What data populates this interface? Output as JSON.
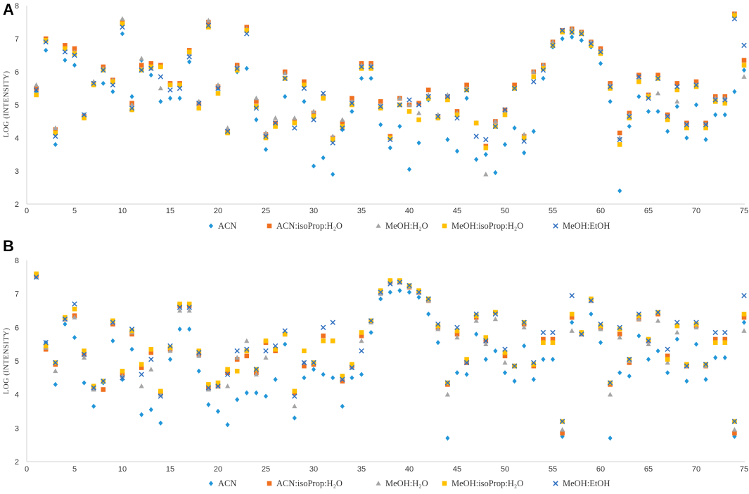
{
  "figure": {
    "legend": [
      {
        "name": "ACN",
        "marker": "diamond",
        "color": "#2196d8"
      },
      {
        "name": "ACN:isoProp:H₂O",
        "marker": "square",
        "color": "#f07020"
      },
      {
        "name": "MeOH:H₂O",
        "marker": "triangle",
        "color": "#a5a5a5"
      },
      {
        "name": "MeOH:isoProp:H₂O",
        "marker": "square",
        "color": "#ffc000"
      },
      {
        "name": "MeOH:EtOH",
        "marker": "cross",
        "color": "#2f6fbf"
      }
    ]
  },
  "chart_data": [
    {
      "type": "scatter",
      "panel_label": "A",
      "ylabel": "LOG (INTENSITY)",
      "xlabel": "",
      "xlim": [
        0,
        75
      ],
      "ylim": [
        2,
        8
      ],
      "xticks": [
        0,
        5,
        10,
        15,
        20,
        25,
        30,
        35,
        40,
        45,
        50,
        55,
        60,
        65,
        70,
        75
      ],
      "yticks": [
        2,
        3,
        4,
        5,
        6,
        7,
        8
      ],
      "grid": false,
      "legend_position": "bottom",
      "x": [
        1,
        2,
        3,
        4,
        5,
        6,
        7,
        8,
        9,
        10,
        11,
        12,
        13,
        14,
        15,
        16,
        17,
        18,
        19,
        20,
        21,
        22,
        23,
        24,
        25,
        26,
        27,
        28,
        29,
        30,
        31,
        32,
        33,
        34,
        35,
        36,
        37,
        38,
        39,
        40,
        41,
        42,
        43,
        44,
        45,
        46,
        47,
        48,
        49,
        50,
        51,
        52,
        53,
        54,
        55,
        56,
        57,
        58,
        59,
        60,
        61,
        62,
        63,
        64,
        65,
        66,
        67,
        68,
        69,
        70,
        71,
        72,
        73,
        74,
        75
      ],
      "series": [
        {
          "name": "ACN",
          "values": [
            5.4,
            6.65,
            3.8,
            6.35,
            6.2,
            4.7,
            5.6,
            5.65,
            5.4,
            7.15,
            5.25,
            6.35,
            5.9,
            5.1,
            5.2,
            5.2,
            6.3,
            5.05,
            7.5,
            5.5,
            4.25,
            6.0,
            6.1,
            4.55,
            3.65,
            4.4,
            5.25,
            4.5,
            5.1,
            3.15,
            3.4,
            2.9,
            4.25,
            4.8,
            5.8,
            5.8,
            4.4,
            3.7,
            4.35,
            3.05,
            3.85,
            5.15,
            4.6,
            3.95,
            3.6,
            5.2,
            3.35,
            3.5,
            2.95,
            3.8,
            4.3,
            3.55,
            4.2,
            5.8,
            6.75,
            7.0,
            7.05,
            6.95,
            6.75,
            6.25,
            5.1,
            2.4,
            4.35,
            5.25,
            4.8,
            4.8,
            4.2,
            4.95,
            4.0,
            5.0,
            3.95,
            4.7,
            4.7,
            5.4,
            6.05
          ]
        },
        {
          "name": "ACN:isoProp:H₂O",
          "values": [
            5.5,
            7.0,
            4.25,
            6.8,
            6.7,
            4.65,
            5.65,
            6.15,
            5.75,
            7.5,
            5.05,
            6.2,
            6.25,
            6.2,
            5.65,
            5.65,
            6.65,
            5.05,
            7.5,
            5.55,
            4.2,
            6.2,
            7.35,
            5.1,
            4.1,
            4.45,
            6.0,
            4.5,
            5.7,
            4.75,
            5.25,
            4.0,
            4.45,
            5.2,
            6.25,
            6.25,
            5.1,
            4.05,
            5.2,
            5.0,
            5.05,
            5.45,
            4.65,
            5.25,
            4.8,
            5.6,
            4.45,
            3.75,
            4.5,
            4.85,
            5.6,
            4.05,
            6.0,
            6.2,
            6.9,
            7.25,
            7.3,
            7.2,
            6.9,
            6.7,
            5.65,
            4.15,
            4.75,
            5.9,
            5.3,
            5.9,
            4.7,
            5.65,
            4.45,
            5.7,
            4.45,
            5.25,
            5.25,
            7.75,
            6.35
          ]
        },
        {
          "name": "MeOH:H₂O",
          "values": [
            5.6,
            6.95,
            4.3,
            6.7,
            6.6,
            4.7,
            5.7,
            6.1,
            5.75,
            7.6,
            5.0,
            6.4,
            6.1,
            5.5,
            5.6,
            5.6,
            6.55,
            5.1,
            7.55,
            5.6,
            4.3,
            6.15,
            7.3,
            5.2,
            4.15,
            4.6,
            5.95,
            4.6,
            5.6,
            4.8,
            5.3,
            4.05,
            4.55,
            5.1,
            6.2,
            6.2,
            5.0,
            4.0,
            5.2,
            5.0,
            4.75,
            5.3,
            4.7,
            5.3,
            4.75,
            5.5,
            4.45,
            2.9,
            4.5,
            4.8,
            5.5,
            4.1,
            6.0,
            6.2,
            6.9,
            7.25,
            7.3,
            7.2,
            6.9,
            6.65,
            5.6,
            4.0,
            4.7,
            5.8,
            5.3,
            5.35,
            4.65,
            5.1,
            4.4,
            5.6,
            4.4,
            5.2,
            5.2,
            7.75,
            5.85
          ]
        },
        {
          "name": "MeOH:isoProp:H₂O",
          "values": [
            5.3,
            6.95,
            4.15,
            6.7,
            6.55,
            4.6,
            5.6,
            6.05,
            5.7,
            7.45,
            4.85,
            6.05,
            6.15,
            6.15,
            5.6,
            5.6,
            6.6,
            4.9,
            7.35,
            5.35,
            4.15,
            6.05,
            7.25,
            4.95,
            4.0,
            4.35,
            5.8,
            4.45,
            5.6,
            4.65,
            5.2,
            3.95,
            4.35,
            5.0,
            6.1,
            6.1,
            4.9,
            4.0,
            5.0,
            4.8,
            4.55,
            5.2,
            4.6,
            5.15,
            4.7,
            5.45,
            4.45,
            3.7,
            4.35,
            4.7,
            5.5,
            4.0,
            5.85,
            6.1,
            6.8,
            7.2,
            7.2,
            7.15,
            6.8,
            6.55,
            5.5,
            3.8,
            4.6,
            5.7,
            5.25,
            5.8,
            4.55,
            5.45,
            4.3,
            5.55,
            4.3,
            5.1,
            5.05,
            7.7,
            6.2
          ]
        },
        {
          "name": "MeOH:EtOH",
          "values": [
            5.45,
            6.9,
            4.05,
            6.6,
            6.5,
            4.7,
            5.65,
            6.05,
            5.6,
            7.35,
            4.9,
            6.05,
            6.1,
            5.85,
            5.45,
            5.5,
            6.45,
            5.05,
            7.4,
            5.5,
            4.2,
            6.1,
            7.15,
            4.9,
            4.05,
            4.45,
            5.8,
            4.3,
            5.5,
            4.55,
            5.35,
            3.85,
            4.3,
            5.05,
            6.15,
            6.15,
            4.95,
            3.95,
            5.0,
            5.15,
            5.0,
            5.25,
            4.65,
            5.25,
            4.6,
            5.45,
            4.05,
            3.95,
            4.35,
            4.85,
            5.5,
            3.9,
            5.7,
            6.05,
            6.8,
            7.25,
            7.2,
            7.15,
            6.85,
            6.6,
            5.55,
            3.95,
            4.65,
            5.85,
            5.2,
            5.8,
            4.65,
            5.55,
            4.4,
            5.6,
            4.4,
            5.15,
            5.15,
            7.6,
            6.8
          ]
        }
      ]
    },
    {
      "type": "scatter",
      "panel_label": "B",
      "ylabel": "LOG (INTENSITY)",
      "xlabel": "",
      "xlim": [
        0,
        75
      ],
      "ylim": [
        2,
        8
      ],
      "xticks": [
        0,
        5,
        10,
        15,
        20,
        25,
        30,
        35,
        40,
        45,
        50,
        55,
        60,
        65,
        70,
        75
      ],
      "yticks": [
        2,
        3,
        4,
        5,
        6,
        7,
        8
      ],
      "grid": false,
      "legend_position": "bottom",
      "x": [
        1,
        2,
        3,
        4,
        5,
        6,
        7,
        8,
        9,
        10,
        11,
        12,
        13,
        14,
        15,
        16,
        17,
        18,
        19,
        20,
        21,
        22,
        23,
        24,
        25,
        26,
        27,
        28,
        29,
        30,
        31,
        32,
        33,
        34,
        35,
        36,
        37,
        38,
        39,
        40,
        41,
        42,
        43,
        44,
        45,
        46,
        47,
        48,
        49,
        50,
        51,
        52,
        53,
        54,
        55,
        56,
        57,
        58,
        59,
        60,
        61,
        62,
        63,
        64,
        65,
        66,
        67,
        68,
        69,
        70,
        71,
        72,
        73,
        74,
        75
      ],
      "series": [
        {
          "name": "ACN",
          "values": [
            7.5,
            5.55,
            4.3,
            6.1,
            5.7,
            4.35,
            3.65,
            4.35,
            5.6,
            4.45,
            5.35,
            3.4,
            3.55,
            3.15,
            5.05,
            5.95,
            5.95,
            4.7,
            3.7,
            3.5,
            3.1,
            3.85,
            4.05,
            4.05,
            3.95,
            4.45,
            5.5,
            3.3,
            4.5,
            4.75,
            4.6,
            4.5,
            3.65,
            4.5,
            4.6,
            5.85,
            6.85,
            7.05,
            7.1,
            7.05,
            6.9,
            6.4,
            5.55,
            2.7,
            4.65,
            4.6,
            5.8,
            5.05,
            5.3,
            4.65,
            4.4,
            5.45,
            4.45,
            5.05,
            5.05,
            2.75,
            6.15,
            5.85,
            6.4,
            5.55,
            2.7,
            4.65,
            4.55,
            5.75,
            5.05,
            5.3,
            4.65,
            5.65,
            4.4,
            5.5,
            4.45,
            5.1,
            5.1,
            2.75,
            6.15
          ]
        },
        {
          "name": "ACN:isoProp:H₂O",
          "values": [
            7.55,
            5.35,
            4.9,
            6.25,
            6.35,
            5.2,
            4.2,
            4.15,
            6.1,
            4.6,
            5.8,
            4.8,
            5.25,
            4.05,
            5.35,
            6.65,
            6.65,
            5.2,
            4.2,
            4.25,
            4.65,
            5.05,
            5.15,
            4.65,
            5.55,
            5.3,
            5.8,
            4.05,
            4.85,
            4.9,
            5.75,
            5.6,
            4.4,
            4.85,
            5.75,
            6.2,
            7.05,
            7.35,
            7.35,
            7.2,
            7.05,
            6.8,
            6.0,
            4.3,
            5.8,
            4.95,
            6.3,
            5.6,
            6.45,
            5.15,
            4.85,
            6.1,
            4.85,
            5.65,
            5.65,
            2.85,
            6.3,
            5.8,
            6.8,
            6.0,
            4.3,
            5.8,
            4.95,
            6.25,
            5.6,
            6.4,
            5.15,
            6.05,
            4.85,
            6.05,
            4.85,
            5.65,
            5.65,
            2.85,
            6.3
          ]
        },
        {
          "name": "MeOH:H₂O",
          "values": [
            7.5,
            5.4,
            4.7,
            6.25,
            6.3,
            5.1,
            4.15,
            4.4,
            6.15,
            4.55,
            5.85,
            4.25,
            4.75,
            4.0,
            5.3,
            6.5,
            6.5,
            5.15,
            4.15,
            4.25,
            4.25,
            5.1,
            5.6,
            4.6,
            5.1,
            5.35,
            5.85,
            3.65,
            4.95,
            4.95,
            5.6,
            5.6,
            4.5,
            4.8,
            5.6,
            6.15,
            7.0,
            7.35,
            7.35,
            7.2,
            7.05,
            6.8,
            5.95,
            4.0,
            5.7,
            5.0,
            6.2,
            5.5,
            6.25,
            4.95,
            4.85,
            6.0,
            4.9,
            5.55,
            5.55,
            2.95,
            5.9,
            5.8,
            6.8,
            5.95,
            4.0,
            5.7,
            5.0,
            6.25,
            5.5,
            6.2,
            4.95,
            5.85,
            4.85,
            6.0,
            4.85,
            5.55,
            5.55,
            2.95,
            5.9
          ]
        },
        {
          "name": "MeOH:isoProp:H₂O",
          "values": [
            7.6,
            5.45,
            4.95,
            6.3,
            6.55,
            5.3,
            4.25,
            4.4,
            6.2,
            4.7,
            5.9,
            4.9,
            5.35,
            4.1,
            5.4,
            6.7,
            6.7,
            5.3,
            4.3,
            4.35,
            4.75,
            4.7,
            5.3,
            4.75,
            5.6,
            5.35,
            5.8,
            4.1,
            5.3,
            4.95,
            5.6,
            5.6,
            4.55,
            4.9,
            5.85,
            6.2,
            7.1,
            7.4,
            7.4,
            7.25,
            7.1,
            6.85,
            6.05,
            4.35,
            5.9,
            5.05,
            6.35,
            5.7,
            6.45,
            5.25,
            4.85,
            6.15,
            4.9,
            5.55,
            5.55,
            3.2,
            6.4,
            5.85,
            6.85,
            6.05,
            4.35,
            5.95,
            5.05,
            6.35,
            5.65,
            6.45,
            5.05,
            6.05,
            4.9,
            6.1,
            4.9,
            5.55,
            5.55,
            3.2,
            6.4
          ]
        },
        {
          "name": "MeOH:EtOH",
          "values": [
            7.5,
            5.55,
            4.95,
            6.25,
            6.7,
            5.2,
            4.2,
            4.4,
            6.15,
            4.5,
            5.95,
            4.6,
            5.05,
            3.95,
            5.45,
            6.6,
            6.6,
            5.25,
            4.2,
            4.25,
            4.6,
            5.3,
            5.35,
            4.75,
            5.3,
            5.45,
            5.9,
            3.95,
            4.95,
            4.95,
            6.0,
            6.15,
            4.45,
            4.8,
            5.3,
            6.2,
            7.05,
            7.3,
            7.35,
            7.25,
            7.05,
            6.85,
            6.1,
            4.35,
            6.0,
            4.95,
            6.4,
            5.6,
            6.4,
            5.35,
            4.85,
            6.15,
            4.95,
            5.85,
            5.85,
            3.2,
            6.95,
            5.8,
            6.8,
            6.1,
            4.35,
            6.0,
            5.05,
            6.4,
            5.6,
            6.45,
            5.35,
            6.15,
            4.85,
            6.15,
            4.9,
            5.85,
            5.85,
            3.2,
            6.95
          ]
        }
      ]
    }
  ]
}
